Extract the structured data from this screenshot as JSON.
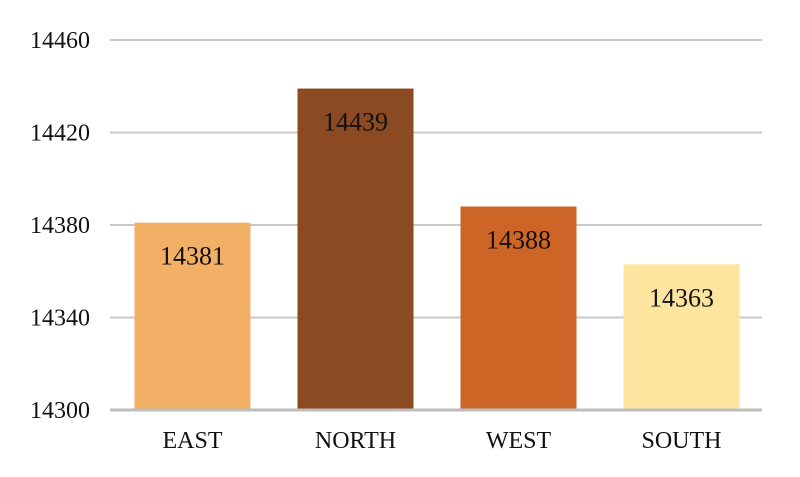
{
  "chart_data": {
    "type": "bar",
    "title": "",
    "xlabel": "",
    "ylabel": "",
    "categories": [
      "EAST",
      "NORTH",
      "WEST",
      "SOUTH"
    ],
    "values": [
      14381,
      14439,
      14388,
      14363
    ],
    "data_labels": [
      "14381",
      "14439",
      "14388",
      "14363"
    ],
    "colors": [
      "#F2B066",
      "#8B4A22",
      "#CC6526",
      "#FDE5A0"
    ],
    "ylim": [
      14300,
      14460
    ],
    "yticks": [
      14300,
      14340,
      14380,
      14420,
      14460
    ],
    "ytick_labels": [
      "14300",
      "14340",
      "14380",
      "14420",
      "14460"
    ],
    "grid": true,
    "grid_color": "#C9C9C9",
    "legend": "none"
  }
}
